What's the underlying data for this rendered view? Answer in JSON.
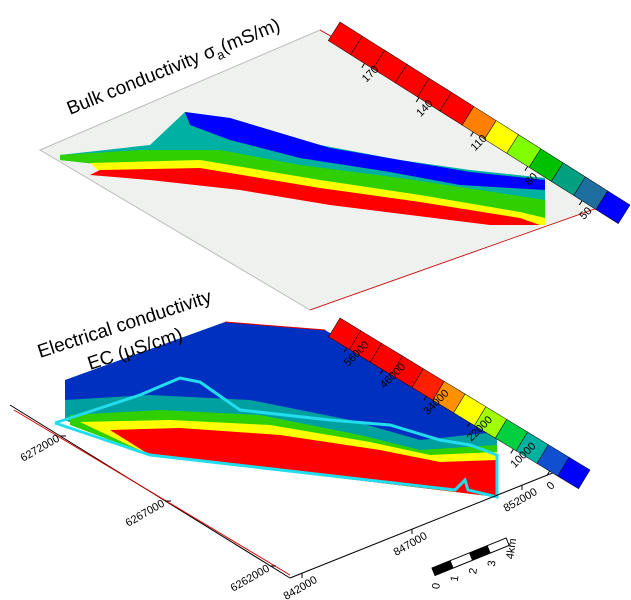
{
  "top_panel": {
    "title": "Bulk conductivity σ",
    "title_subscript": "a",
    "title_unit": "(mS/m)",
    "colorbar": {
      "ticks": [
        170,
        140,
        110,
        80,
        50
      ],
      "range": [
        30,
        190
      ],
      "colors": [
        "#0000ff",
        "#1e6fa0",
        "#00a080",
        "#00c000",
        "#80ff00",
        "#ffff00",
        "#ff8000",
        "#ff0000",
        "#ff0000",
        "#ff0000",
        "#ff0000",
        "#ff0000",
        "#ff0000"
      ]
    }
  },
  "bottom_panel": {
    "title_lines": [
      "Electrical conductivity",
      "EC (μS/cm)"
    ],
    "colorbar": {
      "ticks": [
        56000,
        46000,
        34000,
        22000,
        10000,
        0
      ],
      "range": [
        -8000,
        61000
      ],
      "colors": [
        "#0000ff",
        "#1050d0",
        "#00b0a0",
        "#00d040",
        "#a0ff00",
        "#ffff00",
        "#ff9000",
        "#ff2000",
        "#ff0000",
        "#ff0000",
        "#ff0000",
        "#ff0000"
      ]
    },
    "northing_ticks": [
      6272000,
      6267000,
      6262000
    ],
    "easting_ticks": [
      842000,
      847000,
      852000
    ],
    "scalebar_labels": [
      "0",
      "1",
      "2",
      "3",
      "4km"
    ]
  }
}
